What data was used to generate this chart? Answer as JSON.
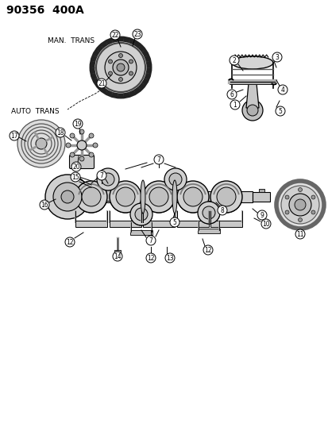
{
  "title": "90356  400A",
  "label_man_trans": "MAN.  TRANS",
  "label_auto_trans": "AUTO  TRANS",
  "bg_color": "#ffffff",
  "line_color": "#000000",
  "gray_dark": "#555555",
  "gray_mid": "#888888",
  "gray_light": "#cccccc",
  "figsize": [
    4.14,
    5.33
  ],
  "dpi": 100,
  "xlim": [
    0,
    414
  ],
  "ylim": [
    0,
    533
  ]
}
